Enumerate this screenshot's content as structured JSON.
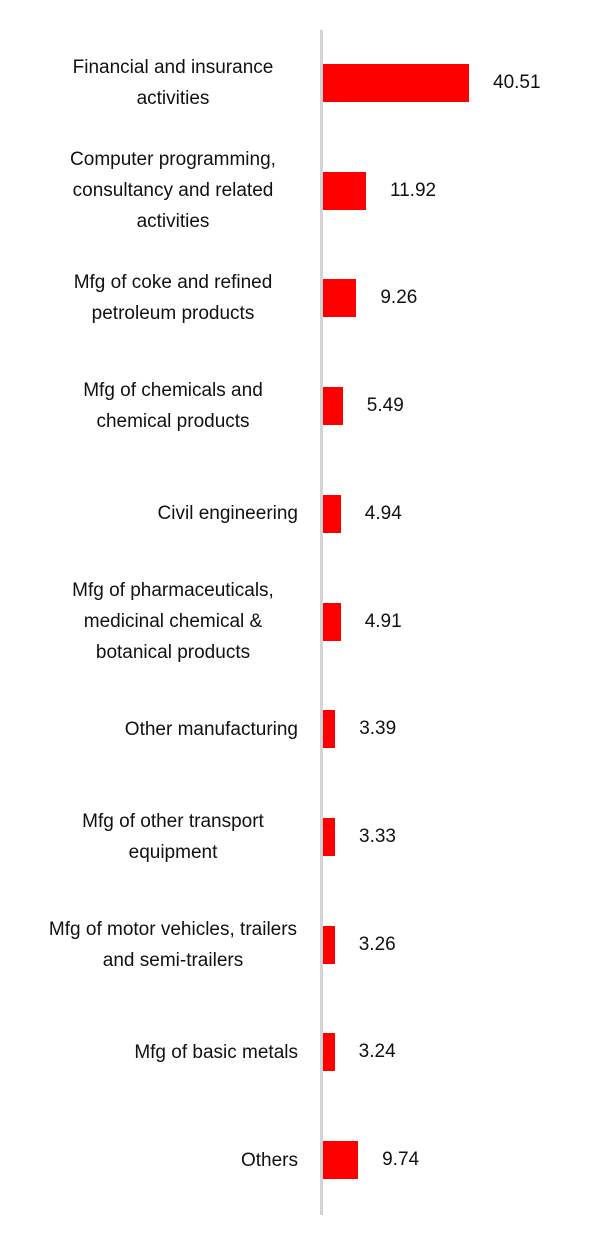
{
  "chart_data": {
    "type": "bar",
    "orientation": "horizontal",
    "categories": [
      "Financial and insurance activities",
      "Computer programming, consultancy and related activities",
      "Mfg of coke and refined petroleum products",
      "Mfg of chemicals and chemical products",
      "Civil engineering",
      "Mfg of pharmaceuticals, medicinal chemical & botanical products",
      "Other manufacturing",
      "Mfg of other transport equipment",
      "Mfg of motor vehicles, trailers and semi-trailers",
      "Mfg of basic metals",
      "Others"
    ],
    "values": [
      40.51,
      11.92,
      9.26,
      5.49,
      4.94,
      4.91,
      3.39,
      3.33,
      3.26,
      3.24,
      9.74
    ],
    "color": "#ff0000"
  }
}
